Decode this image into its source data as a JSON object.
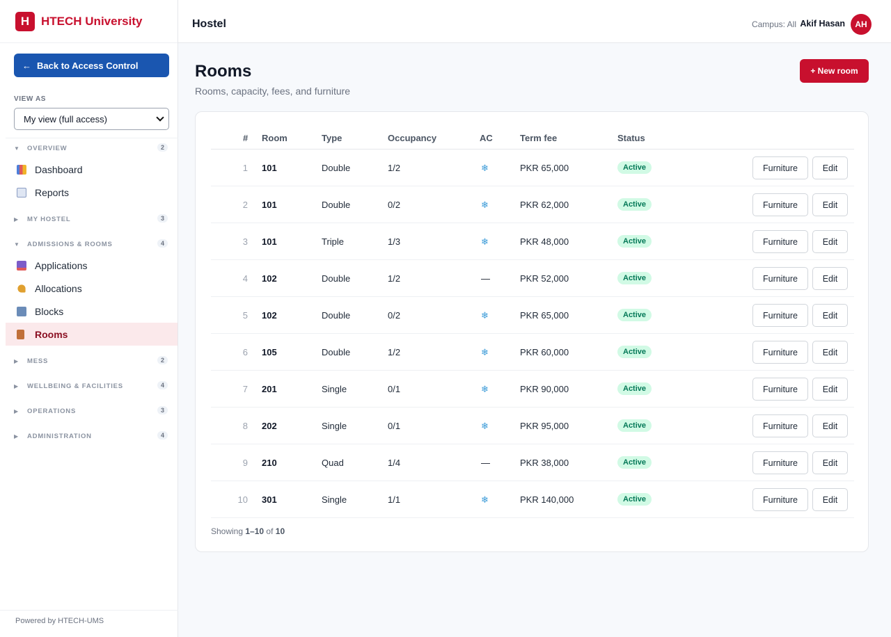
{
  "brand": {
    "logo_letter": "H",
    "name": "HTECH University"
  },
  "sidebar": {
    "back_label": "Back to Access Control",
    "back_arrow": "←",
    "view_as_label": "VIEW AS",
    "view_as_value": "My view (full access)",
    "sections": [
      {
        "label": "OVERVIEW",
        "count": "2",
        "expanded": true,
        "items": [
          {
            "label": "Dashboard",
            "icon": "bar-chart-icon",
            "color": "#4f7fd9"
          },
          {
            "label": "Reports",
            "icon": "line-chart-icon",
            "color": "#8b9dc3"
          }
        ]
      },
      {
        "label": "MY HOSTEL",
        "count": "3",
        "expanded": false
      },
      {
        "label": "ADMISSIONS & ROOMS",
        "count": "4",
        "expanded": true,
        "items": [
          {
            "label": "Applications",
            "icon": "inbox-icon",
            "color": "#7c5cc9"
          },
          {
            "label": "Allocations",
            "icon": "key-icon",
            "color": "#e0a030"
          },
          {
            "label": "Blocks",
            "icon": "building-icon",
            "color": "#6b8cb8"
          },
          {
            "label": "Rooms",
            "icon": "door-icon",
            "color": "#c0703a",
            "active": true
          }
        ]
      },
      {
        "label": "MESS",
        "count": "2",
        "expanded": false
      },
      {
        "label": "WELLBEING & FACILITIES",
        "count": "4",
        "expanded": false
      },
      {
        "label": "OPERATIONS",
        "count": "3",
        "expanded": false
      },
      {
        "label": "ADMINISTRATION",
        "count": "4",
        "expanded": false
      }
    ],
    "powered_by": "Powered by HTECH-UMS"
  },
  "header": {
    "title": "Hostel",
    "campus": "Campus: All",
    "user_name": "Akif Hasan",
    "avatar_initials": "AH"
  },
  "main": {
    "title": "Rooms",
    "subtitle": "Rooms, capacity, fees, and furniture",
    "new_button": "+ New room",
    "table": {
      "columns": [
        "#",
        "Room",
        "Type",
        "Occupancy",
        "AC",
        "Term fee",
        "Status"
      ],
      "furniture_label": "Furniture",
      "edit_label": "Edit",
      "rows": [
        {
          "n": "1",
          "room": "101",
          "type": "Double",
          "occupancy": "1/2",
          "ac": "❄",
          "fee": "PKR 65,000",
          "status": "Active"
        },
        {
          "n": "2",
          "room": "101",
          "type": "Double",
          "occupancy": "0/2",
          "ac": "❄",
          "fee": "PKR 62,000",
          "status": "Active"
        },
        {
          "n": "3",
          "room": "101",
          "type": "Triple",
          "occupancy": "1/3",
          "ac": "❄",
          "fee": "PKR 48,000",
          "status": "Active"
        },
        {
          "n": "4",
          "room": "102",
          "type": "Double",
          "occupancy": "1/2",
          "ac": "—",
          "fee": "PKR 52,000",
          "status": "Active"
        },
        {
          "n": "5",
          "room": "102",
          "type": "Double",
          "occupancy": "0/2",
          "ac": "❄",
          "fee": "PKR 65,000",
          "status": "Active"
        },
        {
          "n": "6",
          "room": "105",
          "type": "Double",
          "occupancy": "1/2",
          "ac": "❄",
          "fee": "PKR 60,000",
          "status": "Active"
        },
        {
          "n": "7",
          "room": "201",
          "type": "Single",
          "occupancy": "0/1",
          "ac": "❄",
          "fee": "PKR 90,000",
          "status": "Active"
        },
        {
          "n": "8",
          "room": "202",
          "type": "Single",
          "occupancy": "0/1",
          "ac": "❄",
          "fee": "PKR 95,000",
          "status": "Active"
        },
        {
          "n": "9",
          "room": "210",
          "type": "Quad",
          "occupancy": "1/4",
          "ac": "—",
          "fee": "PKR 38,000",
          "status": "Active"
        },
        {
          "n": "10",
          "room": "301",
          "type": "Single",
          "occupancy": "1/1",
          "ac": "❄",
          "fee": "PKR 140,000",
          "status": "Active"
        }
      ]
    },
    "showing": {
      "prefix": "Showing",
      "range": "1–10",
      "of": "of",
      "total": "10"
    }
  }
}
